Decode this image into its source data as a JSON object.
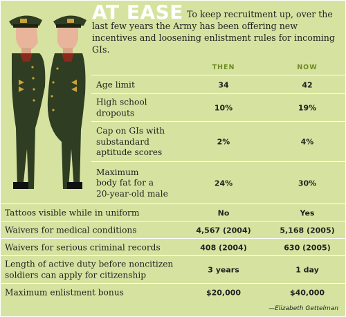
{
  "header": {
    "title": "AT EASE",
    "intro": "To keep recruitment up, over the last few years the Army has been offering new incentives and loosening enlistment rules for incoming GIs."
  },
  "columns": {
    "then": "THEN",
    "now": "NOW"
  },
  "rows": [
    {
      "label": "Age limit",
      "then": "34",
      "now": "42"
    },
    {
      "label": "High school\ndropouts",
      "then": "10%",
      "now": "19%"
    },
    {
      "label": "Cap on GIs with\nsubstandard\naptitude scores",
      "then": "2%",
      "now": "4%"
    },
    {
      "label": "Maximum\nbody fat for a\n20-year-old male",
      "then": "24%",
      "now": "30%"
    },
    {
      "label": "Tattoos visible while in uniform",
      "then": "No",
      "now": "Yes"
    },
    {
      "label": "Waivers for medical conditions",
      "then": "4,567 (2004)",
      "now": "5,168 (2005)"
    },
    {
      "label": "Waivers for serious criminal records",
      "then": "408 (2004)",
      "now": "630 (2005)"
    },
    {
      "label": "Length of active duty before noncitizen\nsoldiers can apply for citizenship",
      "then": "3 years",
      "now": "1 day"
    },
    {
      "label": "Maximum enlistment bonus",
      "then": "$20,000",
      "now": "$40,000"
    }
  ],
  "credit": "—Elizabeth Gettelman",
  "colors": {
    "background": "#d6e3a0",
    "accent": "#6f8a22",
    "uniform": "#2f3d22"
  }
}
